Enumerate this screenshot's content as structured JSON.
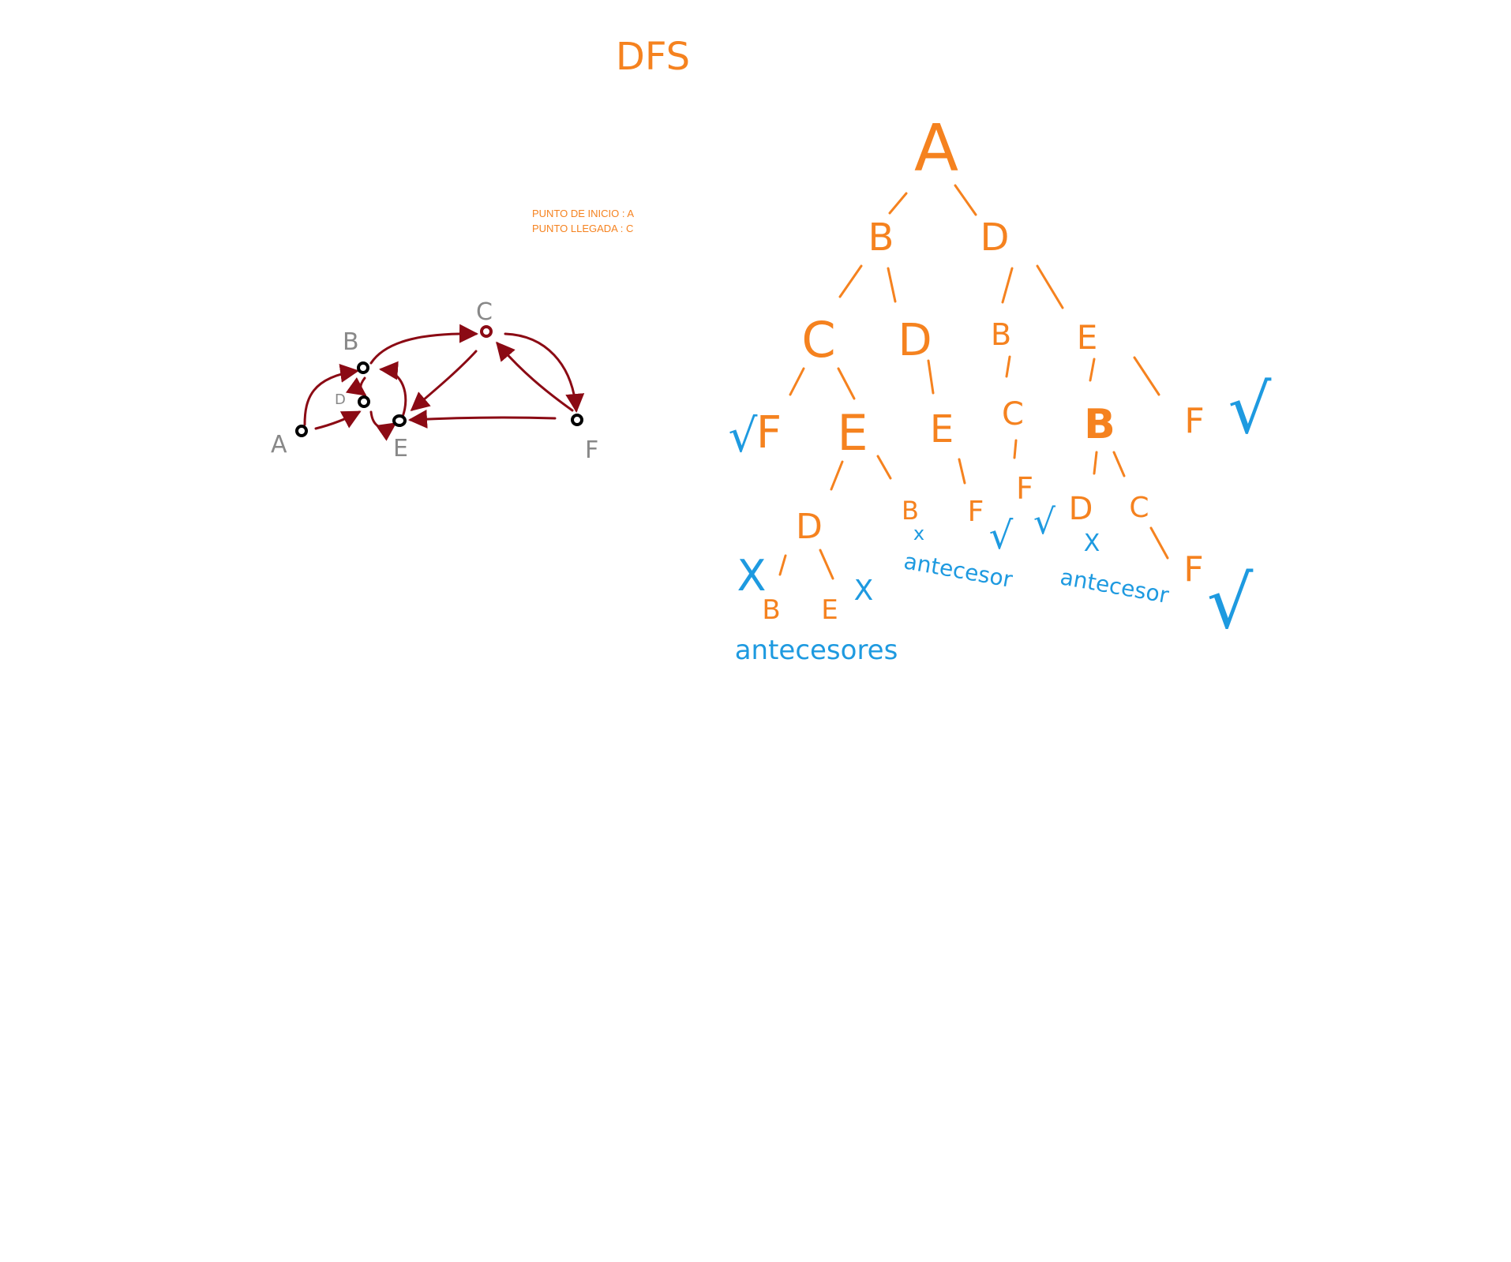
{
  "title": "DFS",
  "info": {
    "start_line": "PUNTO DE INICIO : A",
    "end_line": "PUNTO LLEGADA : C"
  },
  "colors": {
    "tree": "#f5821f",
    "mark": "#1e9ae0",
    "edge": "#8b0a14",
    "node_ring": "#000000",
    "graph_label": "#888888"
  },
  "graph": {
    "nodes": [
      {
        "id": "A",
        "label": "A"
      },
      {
        "id": "B",
        "label": "B"
      },
      {
        "id": "D",
        "label": "D"
      },
      {
        "id": "E",
        "label": "E"
      },
      {
        "id": "C",
        "label": "C"
      },
      {
        "id": "F",
        "label": "F"
      }
    ],
    "edges": [
      {
        "from": "A",
        "to": "B"
      },
      {
        "from": "A",
        "to": "D"
      },
      {
        "from": "B",
        "to": "C"
      },
      {
        "from": "B",
        "to": "D"
      },
      {
        "from": "E",
        "to": "B"
      },
      {
        "from": "D",
        "to": "E"
      },
      {
        "from": "C",
        "to": "E"
      },
      {
        "from": "C",
        "to": "F"
      },
      {
        "from": "F",
        "to": "C"
      },
      {
        "from": "F",
        "to": "E"
      }
    ]
  },
  "tree": {
    "nodes": [
      "A",
      "B",
      "D",
      "C",
      "D",
      "B",
      "E",
      "F",
      "E",
      "E",
      "C",
      "B",
      "F",
      "D",
      "B",
      "F",
      "F",
      "D",
      "C",
      "F",
      "B",
      "E"
    ],
    "check": "√",
    "cross": "X",
    "small_cross": "x",
    "notes": [
      "antecesores",
      "antecesor",
      "antecesor"
    ]
  }
}
